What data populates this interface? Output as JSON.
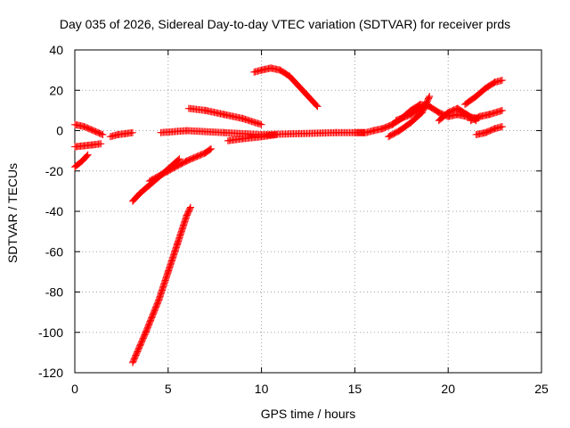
{
  "chart_data": {
    "type": "scatter",
    "title": "Day 035 of 2026, Sidereal Day-to-day VTEC variation (SDTVAR) for receiver prds",
    "xlabel": "GPS time / hours",
    "ylabel": "SDTVAR / TECUs",
    "xlim": [
      0,
      25
    ],
    "ylim": [
      -120,
      40
    ],
    "xticks": [
      0,
      5,
      10,
      15,
      20,
      25
    ],
    "yticks": [
      -120,
      -100,
      -80,
      -60,
      -40,
      -20,
      0,
      20,
      40
    ],
    "grid": true,
    "legend": "none",
    "marker": "plus",
    "color": "#ff0000",
    "series": [
      {
        "values": [
          [
            0.0,
            3
          ],
          [
            0.5,
            2
          ],
          [
            1.0,
            0
          ],
          [
            1.5,
            -2
          ]
        ]
      },
      {
        "values": [
          [
            0.0,
            -8
          ],
          [
            0.5,
            -7.5
          ],
          [
            1.0,
            -7
          ],
          [
            1.4,
            -6.5
          ]
        ]
      },
      {
        "values": [
          [
            0.0,
            -18
          ],
          [
            0.4,
            -15
          ],
          [
            0.7,
            -12
          ]
        ]
      },
      {
        "values": [
          [
            1.9,
            -3
          ],
          [
            2.3,
            -2
          ],
          [
            2.7,
            -1.5
          ],
          [
            3.1,
            -1
          ]
        ]
      },
      {
        "values": [
          [
            3.1,
            -115
          ],
          [
            3.8,
            -100
          ],
          [
            4.5,
            -84
          ],
          [
            5.0,
            -70
          ],
          [
            5.5,
            -56
          ],
          [
            6.0,
            -42
          ],
          [
            6.2,
            -38
          ]
        ]
      },
      {
        "values": [
          [
            3.1,
            -35
          ],
          [
            3.5,
            -31
          ],
          [
            4.0,
            -27
          ],
          [
            4.5,
            -23
          ],
          [
            5.0,
            -19
          ],
          [
            5.6,
            -14
          ]
        ]
      },
      {
        "values": [
          [
            4.0,
            -25
          ],
          [
            5.0,
            -20
          ],
          [
            6.0,
            -15
          ],
          [
            7.0,
            -11
          ],
          [
            7.3,
            -9
          ]
        ]
      },
      {
        "values": [
          [
            4.6,
            -1
          ],
          [
            6.0,
            0
          ],
          [
            8.0,
            -1
          ],
          [
            10.0,
            -2
          ],
          [
            12.0,
            -1.5
          ],
          [
            14.0,
            -1
          ],
          [
            15.5,
            -1
          ]
        ]
      },
      {
        "values": [
          [
            6.1,
            11
          ],
          [
            7.0,
            10
          ],
          [
            8.0,
            8
          ],
          [
            9.0,
            6
          ],
          [
            10.0,
            3
          ]
        ]
      },
      {
        "values": [
          [
            8.2,
            -5
          ],
          [
            9.0,
            -4
          ],
          [
            10.0,
            -3
          ],
          [
            10.8,
            -2
          ]
        ]
      },
      {
        "values": [
          [
            9.6,
            29
          ],
          [
            10.0,
            30
          ],
          [
            10.5,
            31
          ],
          [
            11.0,
            30
          ],
          [
            11.5,
            27
          ],
          [
            12.0,
            22
          ],
          [
            12.5,
            17
          ],
          [
            13.0,
            12
          ]
        ]
      },
      {
        "values": [
          [
            15.0,
            -1
          ],
          [
            15.6,
            -1
          ],
          [
            16.0,
            0
          ],
          [
            16.5,
            1
          ],
          [
            17.0,
            3
          ],
          [
            17.5,
            6
          ],
          [
            18.0,
            10
          ],
          [
            18.5,
            13
          ],
          [
            19.0,
            12
          ],
          [
            19.5,
            9
          ],
          [
            20.0,
            7
          ],
          [
            20.5,
            8
          ],
          [
            21.0,
            7
          ],
          [
            21.6,
            6
          ]
        ]
      },
      {
        "values": [
          [
            16.8,
            -3
          ],
          [
            17.4,
            0
          ],
          [
            18.0,
            4
          ],
          [
            18.6,
            9
          ],
          [
            19.0,
            17
          ]
        ]
      },
      {
        "values": [
          [
            17.2,
            5
          ],
          [
            18.0,
            8
          ],
          [
            18.9,
            13
          ]
        ]
      },
      {
        "values": [
          [
            19.5,
            5
          ],
          [
            20.0,
            9
          ],
          [
            20.5,
            11
          ],
          [
            21.0,
            8
          ],
          [
            21.5,
            5
          ]
        ]
      },
      {
        "values": [
          [
            20.9,
            13
          ],
          [
            21.5,
            17
          ],
          [
            22.0,
            21
          ],
          [
            22.5,
            24
          ],
          [
            22.9,
            25
          ]
        ]
      },
      {
        "values": [
          [
            21.2,
            5
          ],
          [
            21.7,
            7
          ],
          [
            22.2,
            8
          ],
          [
            22.9,
            10
          ]
        ]
      },
      {
        "values": [
          [
            21.5,
            -2
          ],
          [
            22.0,
            -1
          ],
          [
            22.5,
            1
          ],
          [
            22.9,
            2
          ]
        ]
      }
    ]
  }
}
